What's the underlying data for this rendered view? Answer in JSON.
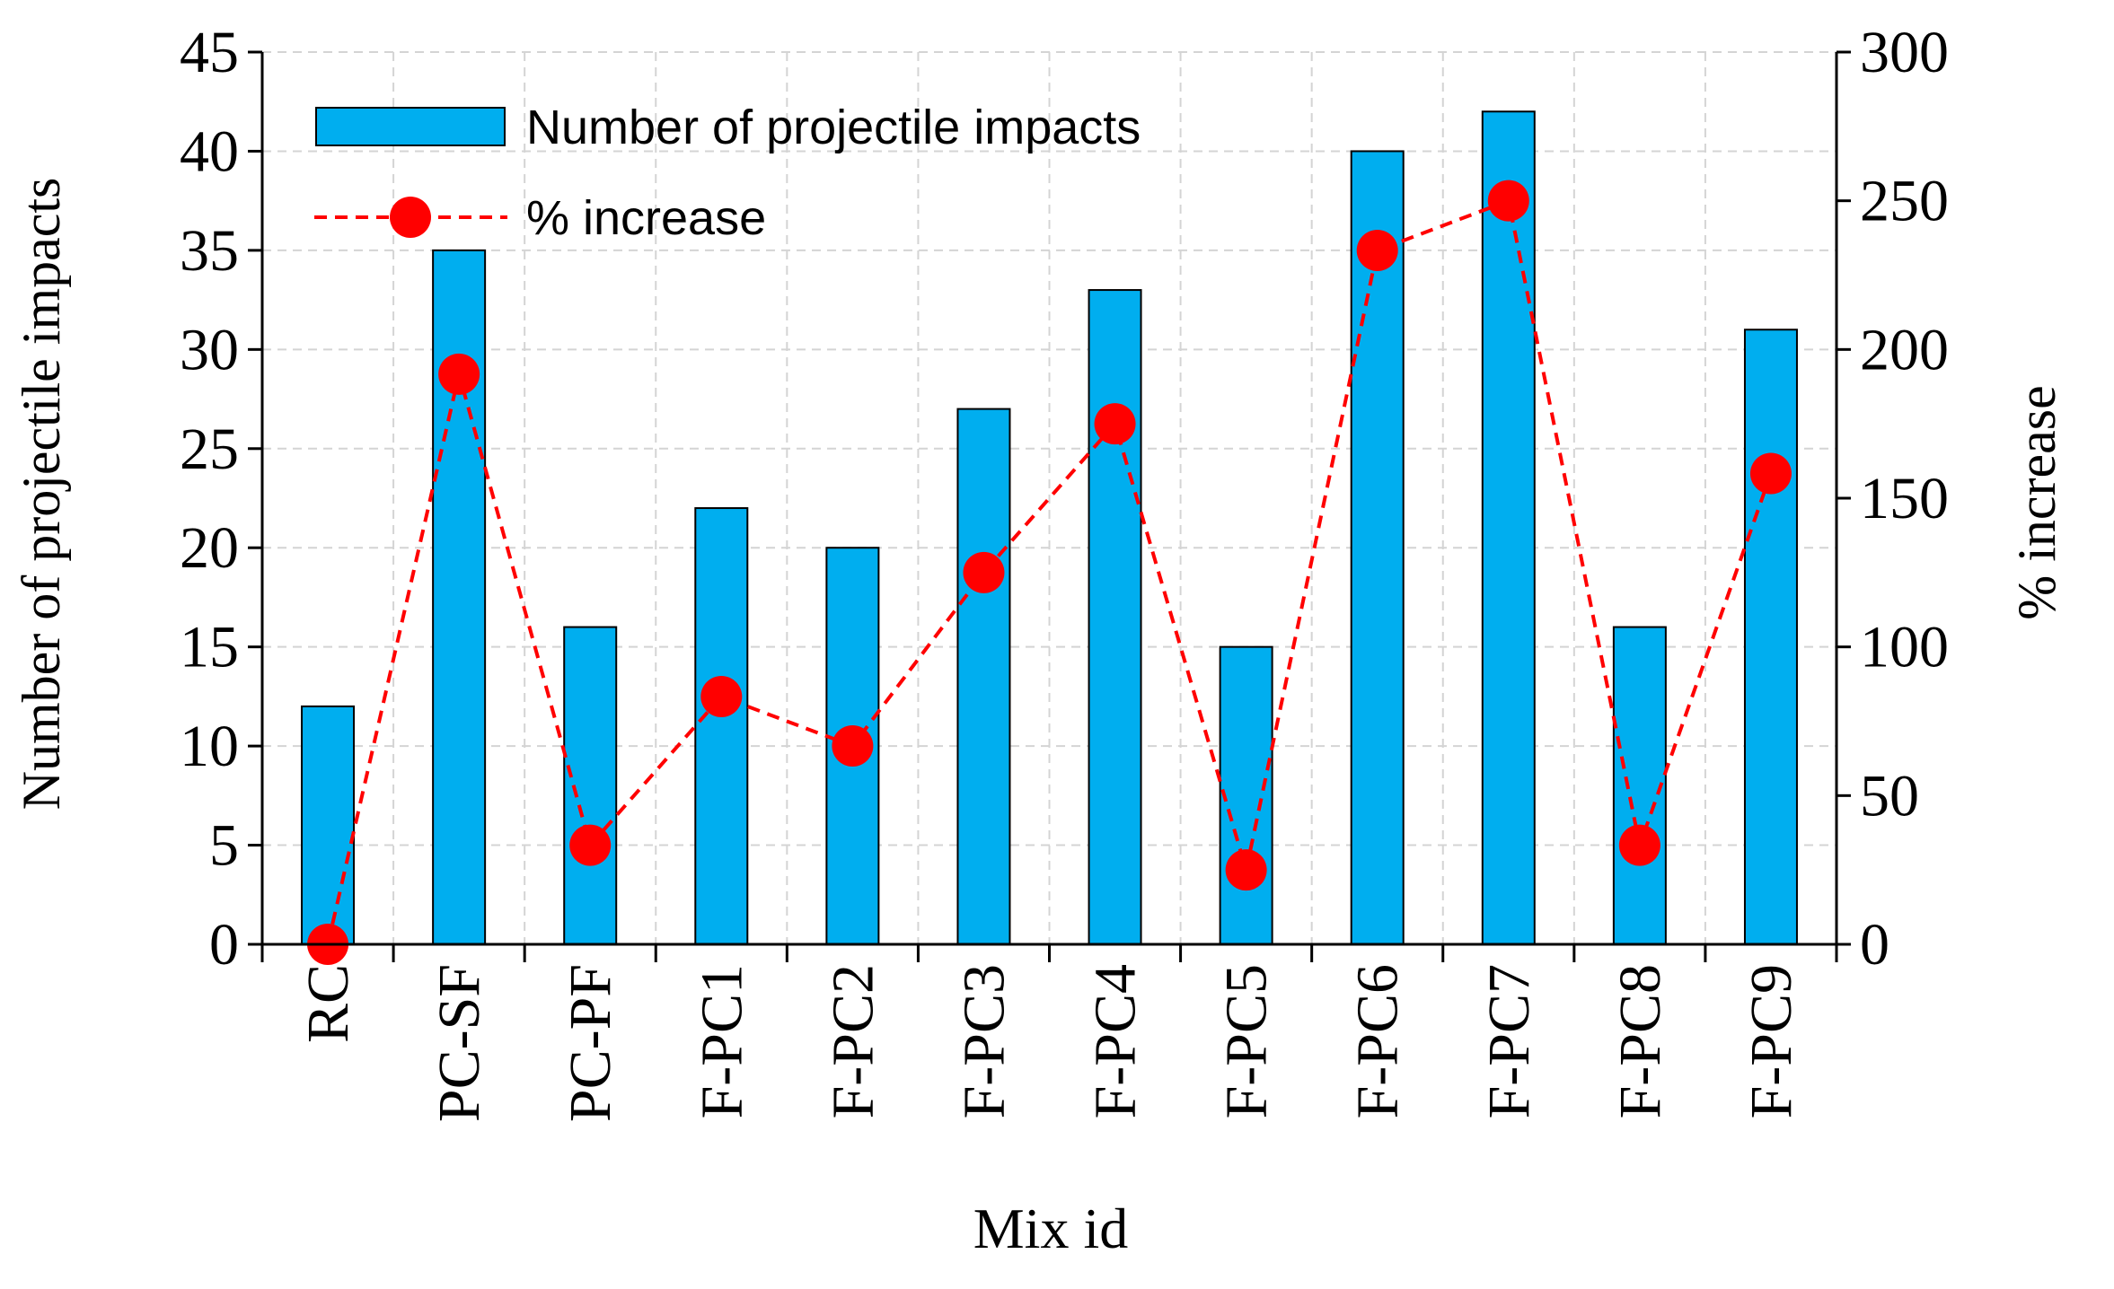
{
  "chart_data": {
    "type": "bar",
    "categories": [
      "RC",
      "PC-SF",
      "PC-PF",
      "F-PC1",
      "F-PC2",
      "F-PC3",
      "F-PC4",
      "F-PC5",
      "F-PC6",
      "F-PC7",
      "F-PC8",
      "F-PC9"
    ],
    "series": [
      {
        "name": "Number of projectile impacts",
        "type": "bar",
        "axis": "left",
        "color": "#00aeef",
        "values": [
          12,
          35,
          16,
          22,
          20,
          27,
          33,
          15,
          40,
          42,
          16,
          31
        ]
      },
      {
        "name": "% increase",
        "type": "line",
        "axis": "right",
        "color": "#ff0000",
        "values": [
          0,
          191.7,
          33.3,
          83.3,
          66.7,
          125,
          175,
          25,
          233.3,
          250,
          33.3,
          158.3
        ]
      }
    ],
    "xlabel": "Mix id",
    "ylabel": "Number of projectile impacts",
    "y2label": "% increase",
    "ylim": [
      0,
      45
    ],
    "y2lim": [
      0,
      300
    ],
    "yticks": [
      "0",
      "5",
      "10",
      "15",
      "20",
      "25",
      "30",
      "35",
      "40",
      "45"
    ],
    "y2ticks": [
      "0",
      "50",
      "100",
      "150",
      "200",
      "250",
      "300"
    ],
    "grid": true,
    "legend_position": "top-left"
  }
}
